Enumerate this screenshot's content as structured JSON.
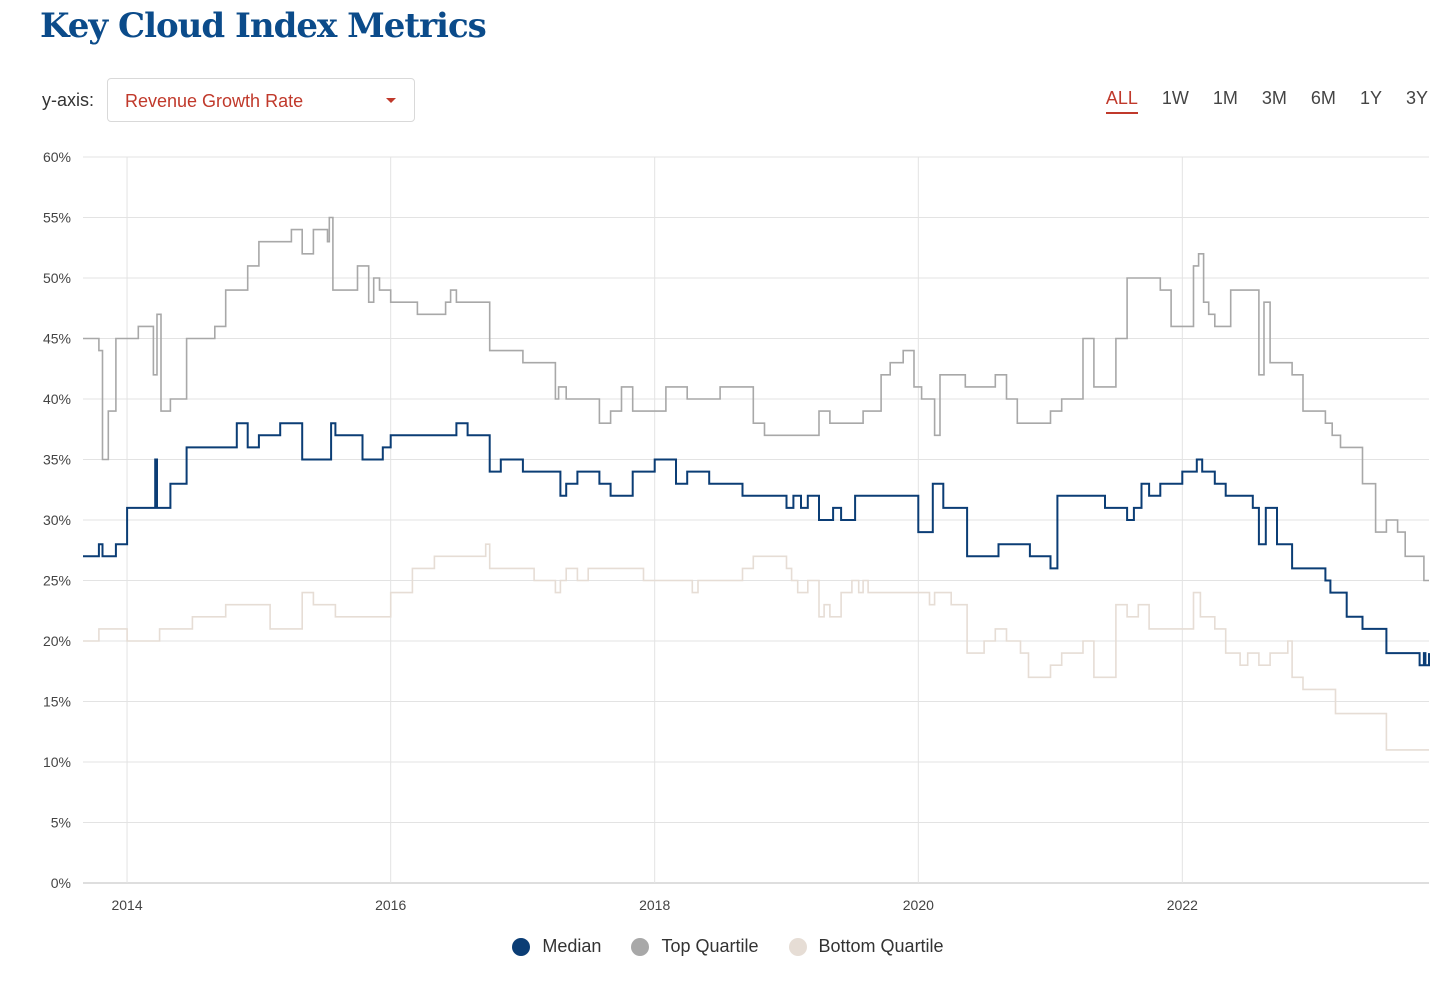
{
  "title": "Key Cloud Index Metrics",
  "controls": {
    "yaxis_label": "y-axis:",
    "yaxis_selected": "Revenue Growth Rate",
    "ranges": [
      "ALL",
      "1W",
      "1M",
      "3M",
      "6M",
      "1Y",
      "3Y"
    ],
    "active_range": "ALL"
  },
  "chart_data": {
    "type": "line",
    "xlim": [
      "2013-09-01",
      "2023-11-15"
    ],
    "ylim": [
      0,
      60
    ],
    "xticks": [
      {
        "date": "2014-01-01",
        "label": "2014"
      },
      {
        "date": "2016-01-01",
        "label": "2016"
      },
      {
        "date": "2018-01-01",
        "label": "2018"
      },
      {
        "date": "2020-01-01",
        "label": "2020"
      },
      {
        "date": "2022-01-01",
        "label": "2022"
      }
    ],
    "yticks": [
      {
        "value": 0,
        "label": "0%"
      },
      {
        "value": 5,
        "label": "5%"
      },
      {
        "value": 10,
        "label": "10%"
      },
      {
        "value": 15,
        "label": "15%"
      },
      {
        "value": 20,
        "label": "20%"
      },
      {
        "value": 25,
        "label": "25%"
      },
      {
        "value": 30,
        "label": "30%"
      },
      {
        "value": 35,
        "label": "35%"
      },
      {
        "value": 40,
        "label": "40%"
      },
      {
        "value": 45,
        "label": "45%"
      },
      {
        "value": 50,
        "label": "50%"
      },
      {
        "value": 55,
        "label": "55%"
      },
      {
        "value": 60,
        "label": "60%"
      }
    ],
    "grid": true,
    "legend_position": "bottom",
    "series": [
      {
        "name": "Median",
        "color": "#0b3d75",
        "points": [
          [
            "2013-09-01",
            27
          ],
          [
            "2013-10-01",
            27
          ],
          [
            "2013-10-15",
            28
          ],
          [
            "2013-10-25",
            27
          ],
          [
            "2013-12-01",
            28
          ],
          [
            "2014-01-01",
            31
          ],
          [
            "2014-03-01",
            31
          ],
          [
            "2014-03-20",
            35
          ],
          [
            "2014-03-25",
            31
          ],
          [
            "2014-05-01",
            33
          ],
          [
            "2014-06-15",
            36
          ],
          [
            "2014-11-01",
            38
          ],
          [
            "2014-12-01",
            36
          ],
          [
            "2015-01-01",
            37
          ],
          [
            "2015-03-01",
            38
          ],
          [
            "2015-05-01",
            35
          ],
          [
            "2015-07-20",
            38
          ],
          [
            "2015-08-01",
            37
          ],
          [
            "2015-10-15",
            35
          ],
          [
            "2015-12-10",
            36
          ],
          [
            "2016-01-01",
            37
          ],
          [
            "2016-07-01",
            38
          ],
          [
            "2016-08-01",
            37
          ],
          [
            "2016-10-01",
            34
          ],
          [
            "2016-11-01",
            35
          ],
          [
            "2017-01-01",
            34
          ],
          [
            "2017-04-15",
            32
          ],
          [
            "2017-05-01",
            33
          ],
          [
            "2017-06-01",
            34
          ],
          [
            "2017-08-01",
            33
          ],
          [
            "2017-09-01",
            32
          ],
          [
            "2017-11-01",
            34
          ],
          [
            "2018-01-01",
            35
          ],
          [
            "2018-03-01",
            33
          ],
          [
            "2018-04-01",
            34
          ],
          [
            "2018-06-01",
            33
          ],
          [
            "2018-09-01",
            32
          ],
          [
            "2019-01-01",
            31
          ],
          [
            "2019-01-20",
            32
          ],
          [
            "2019-02-10",
            31
          ],
          [
            "2019-03-01",
            32
          ],
          [
            "2019-04-01",
            30
          ],
          [
            "2019-05-10",
            31
          ],
          [
            "2019-06-01",
            30
          ],
          [
            "2019-07-10",
            32
          ],
          [
            "2020-01-01",
            29
          ],
          [
            "2020-02-10",
            33
          ],
          [
            "2020-03-10",
            31
          ],
          [
            "2020-05-15",
            27
          ],
          [
            "2020-08-10",
            28
          ],
          [
            "2020-11-05",
            27
          ],
          [
            "2021-01-01",
            26
          ],
          [
            "2021-01-20",
            32
          ],
          [
            "2021-06-01",
            31
          ],
          [
            "2021-08-01",
            30
          ],
          [
            "2021-08-20",
            31
          ],
          [
            "2021-09-10",
            33
          ],
          [
            "2021-10-01",
            32
          ],
          [
            "2021-11-01",
            33
          ],
          [
            "2022-01-01",
            34
          ],
          [
            "2022-02-10",
            35
          ],
          [
            "2022-02-25",
            34
          ],
          [
            "2022-04-01",
            33
          ],
          [
            "2022-05-01",
            32
          ],
          [
            "2022-07-15",
            31
          ],
          [
            "2022-08-01",
            28
          ],
          [
            "2022-08-20",
            31
          ],
          [
            "2022-09-20",
            28
          ],
          [
            "2022-11-01",
            26
          ],
          [
            "2023-02-01",
            25
          ],
          [
            "2023-02-15",
            24
          ],
          [
            "2023-04-01",
            22
          ],
          [
            "2023-05-15",
            21
          ],
          [
            "2023-07-20",
            19
          ],
          [
            "2023-10-20",
            18
          ],
          [
            "2023-11-01",
            19
          ],
          [
            "2023-11-05",
            18
          ],
          [
            "2023-11-15",
            19
          ]
        ]
      },
      {
        "name": "Top Quartile",
        "color": "#a8a8a8",
        "points": [
          [
            "2013-09-01",
            45
          ],
          [
            "2013-10-15",
            44
          ],
          [
            "2013-10-25",
            35
          ],
          [
            "2013-11-10",
            39
          ],
          [
            "2013-12-01",
            45
          ],
          [
            "2014-02-01",
            46
          ],
          [
            "2014-03-15",
            42
          ],
          [
            "2014-03-25",
            47
          ],
          [
            "2014-04-05",
            39
          ],
          [
            "2014-05-01",
            40
          ],
          [
            "2014-06-15",
            45
          ],
          [
            "2014-09-01",
            46
          ],
          [
            "2014-10-01",
            49
          ],
          [
            "2014-12-01",
            51
          ],
          [
            "2015-01-01",
            53
          ],
          [
            "2015-04-01",
            54
          ],
          [
            "2015-05-01",
            52
          ],
          [
            "2015-06-01",
            54
          ],
          [
            "2015-07-10",
            53
          ],
          [
            "2015-07-15",
            55
          ],
          [
            "2015-07-25",
            49
          ],
          [
            "2015-10-01",
            51
          ],
          [
            "2015-11-01",
            48
          ],
          [
            "2015-11-15",
            50
          ],
          [
            "2015-12-01",
            49
          ],
          [
            "2016-01-01",
            48
          ],
          [
            "2016-03-15",
            47
          ],
          [
            "2016-04-01",
            47
          ],
          [
            "2016-06-01",
            48
          ],
          [
            "2016-06-15",
            49
          ],
          [
            "2016-07-01",
            48
          ],
          [
            "2016-09-01",
            48
          ],
          [
            "2016-10-01",
            44
          ],
          [
            "2017-01-01",
            43
          ],
          [
            "2017-04-01",
            40
          ],
          [
            "2017-04-10",
            41
          ],
          [
            "2017-05-01",
            40
          ],
          [
            "2017-08-01",
            38
          ],
          [
            "2017-09-01",
            39
          ],
          [
            "2017-10-01",
            41
          ],
          [
            "2017-11-01",
            39
          ],
          [
            "2018-01-01",
            39
          ],
          [
            "2018-02-01",
            41
          ],
          [
            "2018-04-01",
            40
          ],
          [
            "2018-07-01",
            41
          ],
          [
            "2018-10-01",
            38
          ],
          [
            "2018-11-01",
            37
          ],
          [
            "2019-04-01",
            39
          ],
          [
            "2019-05-01",
            38
          ],
          [
            "2019-08-01",
            39
          ],
          [
            "2019-09-20",
            42
          ],
          [
            "2019-10-15",
            43
          ],
          [
            "2019-11-20",
            44
          ],
          [
            "2019-12-20",
            41
          ],
          [
            "2020-01-10",
            40
          ],
          [
            "2020-02-15",
            37
          ],
          [
            "2020-03-01",
            42
          ],
          [
            "2020-05-10",
            41
          ],
          [
            "2020-08-01",
            42
          ],
          [
            "2020-09-01",
            40
          ],
          [
            "2020-10-01",
            38
          ],
          [
            "2021-01-01",
            39
          ],
          [
            "2021-02-01",
            40
          ],
          [
            "2021-04-01",
            45
          ],
          [
            "2021-05-01",
            41
          ],
          [
            "2021-07-01",
            45
          ],
          [
            "2021-08-01",
            50
          ],
          [
            "2021-11-01",
            49
          ],
          [
            "2021-12-01",
            46
          ],
          [
            "2022-02-01",
            51
          ],
          [
            "2022-02-15",
            52
          ],
          [
            "2022-03-01",
            48
          ],
          [
            "2022-03-15",
            47
          ],
          [
            "2022-04-01",
            46
          ],
          [
            "2022-05-15",
            49
          ],
          [
            "2022-08-01",
            42
          ],
          [
            "2022-08-15",
            48
          ],
          [
            "2022-09-01",
            43
          ],
          [
            "2022-10-01",
            43
          ],
          [
            "2022-11-01",
            42
          ],
          [
            "2022-12-01",
            39
          ],
          [
            "2023-02-01",
            38
          ],
          [
            "2023-02-20",
            37
          ],
          [
            "2023-03-15",
            36
          ],
          [
            "2023-05-15",
            33
          ],
          [
            "2023-06-20",
            29
          ],
          [
            "2023-07-20",
            30
          ],
          [
            "2023-08-20",
            29
          ],
          [
            "2023-09-10",
            27
          ],
          [
            "2023-11-01",
            25
          ],
          [
            "2023-11-15",
            25
          ]
        ]
      },
      {
        "name": "Bottom Quartile",
        "color": "#e6ddd5",
        "points": [
          [
            "2013-09-01",
            20
          ],
          [
            "2013-10-15",
            21
          ],
          [
            "2014-01-01",
            20
          ],
          [
            "2014-04-01",
            21
          ],
          [
            "2014-07-01",
            22
          ],
          [
            "2014-10-01",
            23
          ],
          [
            "2015-02-01",
            21
          ],
          [
            "2015-05-01",
            24
          ],
          [
            "2015-06-01",
            23
          ],
          [
            "2015-08-01",
            22
          ],
          [
            "2016-01-01",
            24
          ],
          [
            "2016-03-01",
            26
          ],
          [
            "2016-05-01",
            27
          ],
          [
            "2016-09-01",
            27
          ],
          [
            "2016-09-20",
            28
          ],
          [
            "2016-10-01",
            26
          ],
          [
            "2017-02-01",
            25
          ],
          [
            "2017-04-01",
            24
          ],
          [
            "2017-04-15",
            25
          ],
          [
            "2017-05-01",
            26
          ],
          [
            "2017-06-01",
            25
          ],
          [
            "2017-07-01",
            26
          ],
          [
            "2017-12-01",
            25
          ],
          [
            "2018-03-01",
            25
          ],
          [
            "2018-04-15",
            24
          ],
          [
            "2018-05-01",
            25
          ],
          [
            "2018-06-01",
            25
          ],
          [
            "2018-09-01",
            26
          ],
          [
            "2018-10-01",
            27
          ],
          [
            "2019-01-01",
            26
          ],
          [
            "2019-01-15",
            25
          ],
          [
            "2019-02-01",
            24
          ],
          [
            "2019-03-01",
            25
          ],
          [
            "2019-04-01",
            22
          ],
          [
            "2019-04-15",
            23
          ],
          [
            "2019-05-01",
            22
          ],
          [
            "2019-06-01",
            24
          ],
          [
            "2019-07-01",
            25
          ],
          [
            "2019-07-20",
            24
          ],
          [
            "2019-08-01",
            25
          ],
          [
            "2019-08-15",
            24
          ],
          [
            "2020-02-01",
            23
          ],
          [
            "2020-02-15",
            24
          ],
          [
            "2020-04-01",
            23
          ],
          [
            "2020-05-15",
            19
          ],
          [
            "2020-07-01",
            20
          ],
          [
            "2020-08-01",
            21
          ],
          [
            "2020-09-01",
            20
          ],
          [
            "2020-10-10",
            19
          ],
          [
            "2020-11-01",
            17
          ],
          [
            "2021-01-01",
            18
          ],
          [
            "2021-02-01",
            19
          ],
          [
            "2021-04-01",
            20
          ],
          [
            "2021-05-01",
            17
          ],
          [
            "2021-07-01",
            23
          ],
          [
            "2021-08-01",
            22
          ],
          [
            "2021-09-01",
            23
          ],
          [
            "2021-10-01",
            21
          ],
          [
            "2022-02-01",
            24
          ],
          [
            "2022-02-20",
            22
          ],
          [
            "2022-04-01",
            21
          ],
          [
            "2022-05-01",
            19
          ],
          [
            "2022-06-10",
            18
          ],
          [
            "2022-07-01",
            19
          ],
          [
            "2022-08-01",
            18
          ],
          [
            "2022-09-01",
            19
          ],
          [
            "2022-10-20",
            20
          ],
          [
            "2022-11-01",
            17
          ],
          [
            "2022-12-01",
            16
          ],
          [
            "2023-03-01",
            14
          ],
          [
            "2023-07-20",
            11
          ],
          [
            "2023-11-15",
            11
          ]
        ]
      }
    ]
  }
}
